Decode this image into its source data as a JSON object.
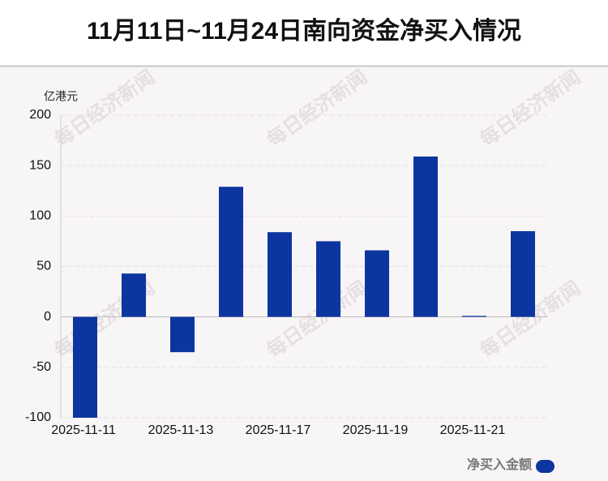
{
  "chart_data": {
    "type": "bar",
    "title": "11月11日~11月24日南向资金净买入情况",
    "y_unit": "亿港元",
    "categories": [
      "2025-11-11",
      null,
      "2025-11-13",
      null,
      "2025-11-17",
      null,
      "2025-11-19",
      null,
      "2025-11-21",
      null
    ],
    "series": [
      {
        "name": "净买入金额",
        "color": "#0c35a0",
        "values": [
          -100,
          43,
          -35,
          129,
          84,
          75,
          66,
          159,
          1,
          85
        ]
      }
    ],
    "ylim": [
      -100,
      200
    ],
    "yticks": [
      -100,
      -50,
      0,
      50,
      100,
      150,
      200
    ],
    "grid": true,
    "watermark": "每日经济新闻"
  }
}
